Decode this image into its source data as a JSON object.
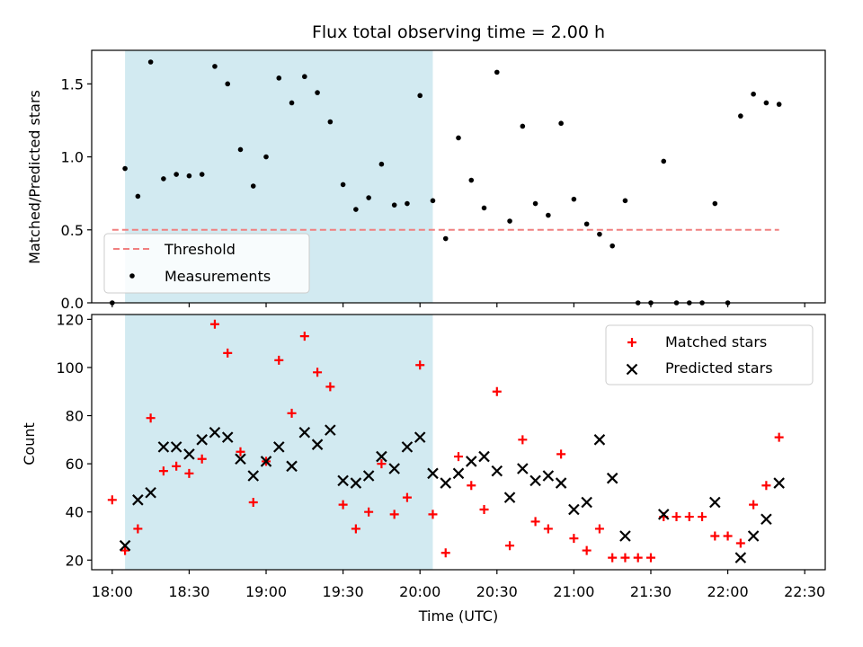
{
  "chart_data": [
    {
      "type": "scatter",
      "title": "Flux total observing time = 2.00 h",
      "ylabel": "Matched/Predicted stars",
      "xlabel": "",
      "ylim": [
        0,
        1.73
      ],
      "xlim": [
        "17:52",
        "22:38"
      ],
      "yticks": [
        "0.0",
        "0.5",
        "1.0",
        "1.5"
      ],
      "shaded_interval": [
        "18:05",
        "20:05"
      ],
      "shade_color": "#add8e6",
      "grid": false,
      "legend_position": "lower-left",
      "threshold": {
        "name": "Threshold",
        "value": 0.5,
        "from": "18:00",
        "to": "22:20",
        "color": "#f08080"
      },
      "series": [
        {
          "name": "Measurements",
          "color": "#000000",
          "marker": "dot",
          "points": [
            [
              "18:00",
              0.0
            ],
            [
              "18:05",
              0.92
            ],
            [
              "18:10",
              0.73
            ],
            [
              "18:15",
              1.65
            ],
            [
              "18:20",
              0.85
            ],
            [
              "18:25",
              0.88
            ],
            [
              "18:30",
              0.87
            ],
            [
              "18:35",
              0.88
            ],
            [
              "18:40",
              1.62
            ],
            [
              "18:45",
              1.5
            ],
            [
              "18:50",
              1.05
            ],
            [
              "18:55",
              0.8
            ],
            [
              "19:00",
              1.0
            ],
            [
              "19:05",
              1.54
            ],
            [
              "19:10",
              1.37
            ],
            [
              "19:15",
              1.55
            ],
            [
              "19:20",
              1.44
            ],
            [
              "19:25",
              1.24
            ],
            [
              "19:30",
              0.81
            ],
            [
              "19:35",
              0.64
            ],
            [
              "19:40",
              0.72
            ],
            [
              "19:45",
              0.95
            ],
            [
              "19:50",
              0.67
            ],
            [
              "19:55",
              0.68
            ],
            [
              "20:00",
              1.42
            ],
            [
              "20:05",
              0.7
            ],
            [
              "20:10",
              0.44
            ],
            [
              "20:15",
              1.13
            ],
            [
              "20:20",
              0.84
            ],
            [
              "20:25",
              0.65
            ],
            [
              "20:30",
              1.58
            ],
            [
              "20:35",
              0.56
            ],
            [
              "20:40",
              1.21
            ],
            [
              "20:45",
              0.68
            ],
            [
              "20:50",
              0.6
            ],
            [
              "20:55",
              1.23
            ],
            [
              "21:00",
              0.71
            ],
            [
              "21:05",
              0.54
            ],
            [
              "21:10",
              0.47
            ],
            [
              "21:15",
              0.39
            ],
            [
              "21:20",
              0.7
            ],
            [
              "21:25",
              0.0
            ],
            [
              "21:30",
              0.0
            ],
            [
              "21:35",
              0.97
            ],
            [
              "21:40",
              0.0
            ],
            [
              "21:45",
              0.0
            ],
            [
              "21:50",
              0.0
            ],
            [
              "21:55",
              0.68
            ],
            [
              "22:00",
              0.0
            ],
            [
              "22:05",
              1.28
            ],
            [
              "22:10",
              1.43
            ],
            [
              "22:15",
              1.37
            ],
            [
              "22:20",
              1.36
            ]
          ]
        }
      ]
    },
    {
      "type": "scatter",
      "title": "",
      "ylabel": "Count",
      "xlabel": "Time (UTC)",
      "ylim": [
        16,
        122
      ],
      "xlim": [
        "17:52",
        "22:38"
      ],
      "yticks": [
        "20",
        "40",
        "60",
        "80",
        "100",
        "120"
      ],
      "xticks": [
        "18:00",
        "18:30",
        "19:00",
        "19:30",
        "20:00",
        "20:30",
        "21:00",
        "21:30",
        "22:00",
        "22:30"
      ],
      "shaded_interval": [
        "18:05",
        "20:05"
      ],
      "shade_color": "#add8e6",
      "grid": false,
      "legend_position": "top-right",
      "series": [
        {
          "name": "Matched stars",
          "color": "#ff0000",
          "marker": "plus",
          "points": [
            [
              "18:00",
              45
            ],
            [
              "18:05",
              24
            ],
            [
              "18:10",
              33
            ],
            [
              "18:15",
              79
            ],
            [
              "18:20",
              57
            ],
            [
              "18:25",
              59
            ],
            [
              "18:30",
              56
            ],
            [
              "18:35",
              62
            ],
            [
              "18:40",
              118
            ],
            [
              "18:45",
              106
            ],
            [
              "18:50",
              65
            ],
            [
              "18:55",
              44
            ],
            [
              "19:00",
              61
            ],
            [
              "19:05",
              103
            ],
            [
              "19:10",
              81
            ],
            [
              "19:15",
              113
            ],
            [
              "19:20",
              98
            ],
            [
              "19:25",
              92
            ],
            [
              "19:30",
              43
            ],
            [
              "19:35",
              33
            ],
            [
              "19:40",
              40
            ],
            [
              "19:45",
              60
            ],
            [
              "19:50",
              39
            ],
            [
              "19:55",
              46
            ],
            [
              "20:00",
              101
            ],
            [
              "20:05",
              39
            ],
            [
              "20:10",
              23
            ],
            [
              "20:15",
              63
            ],
            [
              "20:20",
              51
            ],
            [
              "20:25",
              41
            ],
            [
              "20:30",
              90
            ],
            [
              "20:35",
              26
            ],
            [
              "20:40",
              70
            ],
            [
              "20:45",
              36
            ],
            [
              "20:50",
              33
            ],
            [
              "20:55",
              64
            ],
            [
              "21:00",
              29
            ],
            [
              "21:05",
              24
            ],
            [
              "21:10",
              33
            ],
            [
              "21:15",
              21
            ],
            [
              "21:20",
              21
            ],
            [
              "21:25",
              21
            ],
            [
              "21:30",
              21
            ],
            [
              "21:35",
              38
            ],
            [
              "21:40",
              38
            ],
            [
              "21:45",
              38
            ],
            [
              "21:50",
              38
            ],
            [
              "21:55",
              30
            ],
            [
              "22:00",
              30
            ],
            [
              "22:05",
              27
            ],
            [
              "22:10",
              43
            ],
            [
              "22:15",
              51
            ],
            [
              "22:20",
              71
            ]
          ]
        },
        {
          "name": "Predicted stars",
          "color": "#000000",
          "marker": "x",
          "points": [
            [
              "18:05",
              26
            ],
            [
              "18:10",
              45
            ],
            [
              "18:15",
              48
            ],
            [
              "18:20",
              67
            ],
            [
              "18:25",
              67
            ],
            [
              "18:30",
              64
            ],
            [
              "18:35",
              70
            ],
            [
              "18:40",
              73
            ],
            [
              "18:45",
              71
            ],
            [
              "18:50",
              62
            ],
            [
              "18:55",
              55
            ],
            [
              "19:00",
              61
            ],
            [
              "19:05",
              67
            ],
            [
              "19:10",
              59
            ],
            [
              "19:15",
              73
            ],
            [
              "19:20",
              68
            ],
            [
              "19:25",
              74
            ],
            [
              "19:30",
              53
            ],
            [
              "19:35",
              52
            ],
            [
              "19:40",
              55
            ],
            [
              "19:45",
              63
            ],
            [
              "19:50",
              58
            ],
            [
              "19:55",
              67
            ],
            [
              "20:00",
              71
            ],
            [
              "20:05",
              56
            ],
            [
              "20:10",
              52
            ],
            [
              "20:15",
              56
            ],
            [
              "20:20",
              61
            ],
            [
              "20:25",
              63
            ],
            [
              "20:30",
              57
            ],
            [
              "20:35",
              46
            ],
            [
              "20:40",
              58
            ],
            [
              "20:45",
              53
            ],
            [
              "20:50",
              55
            ],
            [
              "20:55",
              52
            ],
            [
              "21:00",
              41
            ],
            [
              "21:05",
              44
            ],
            [
              "21:10",
              70
            ],
            [
              "21:15",
              54
            ],
            [
              "21:20",
              30
            ],
            [
              "21:35",
              39
            ],
            [
              "21:55",
              44
            ],
            [
              "22:05",
              21
            ],
            [
              "22:10",
              30
            ],
            [
              "22:15",
              37
            ],
            [
              "22:20",
              52
            ]
          ]
        }
      ]
    }
  ]
}
